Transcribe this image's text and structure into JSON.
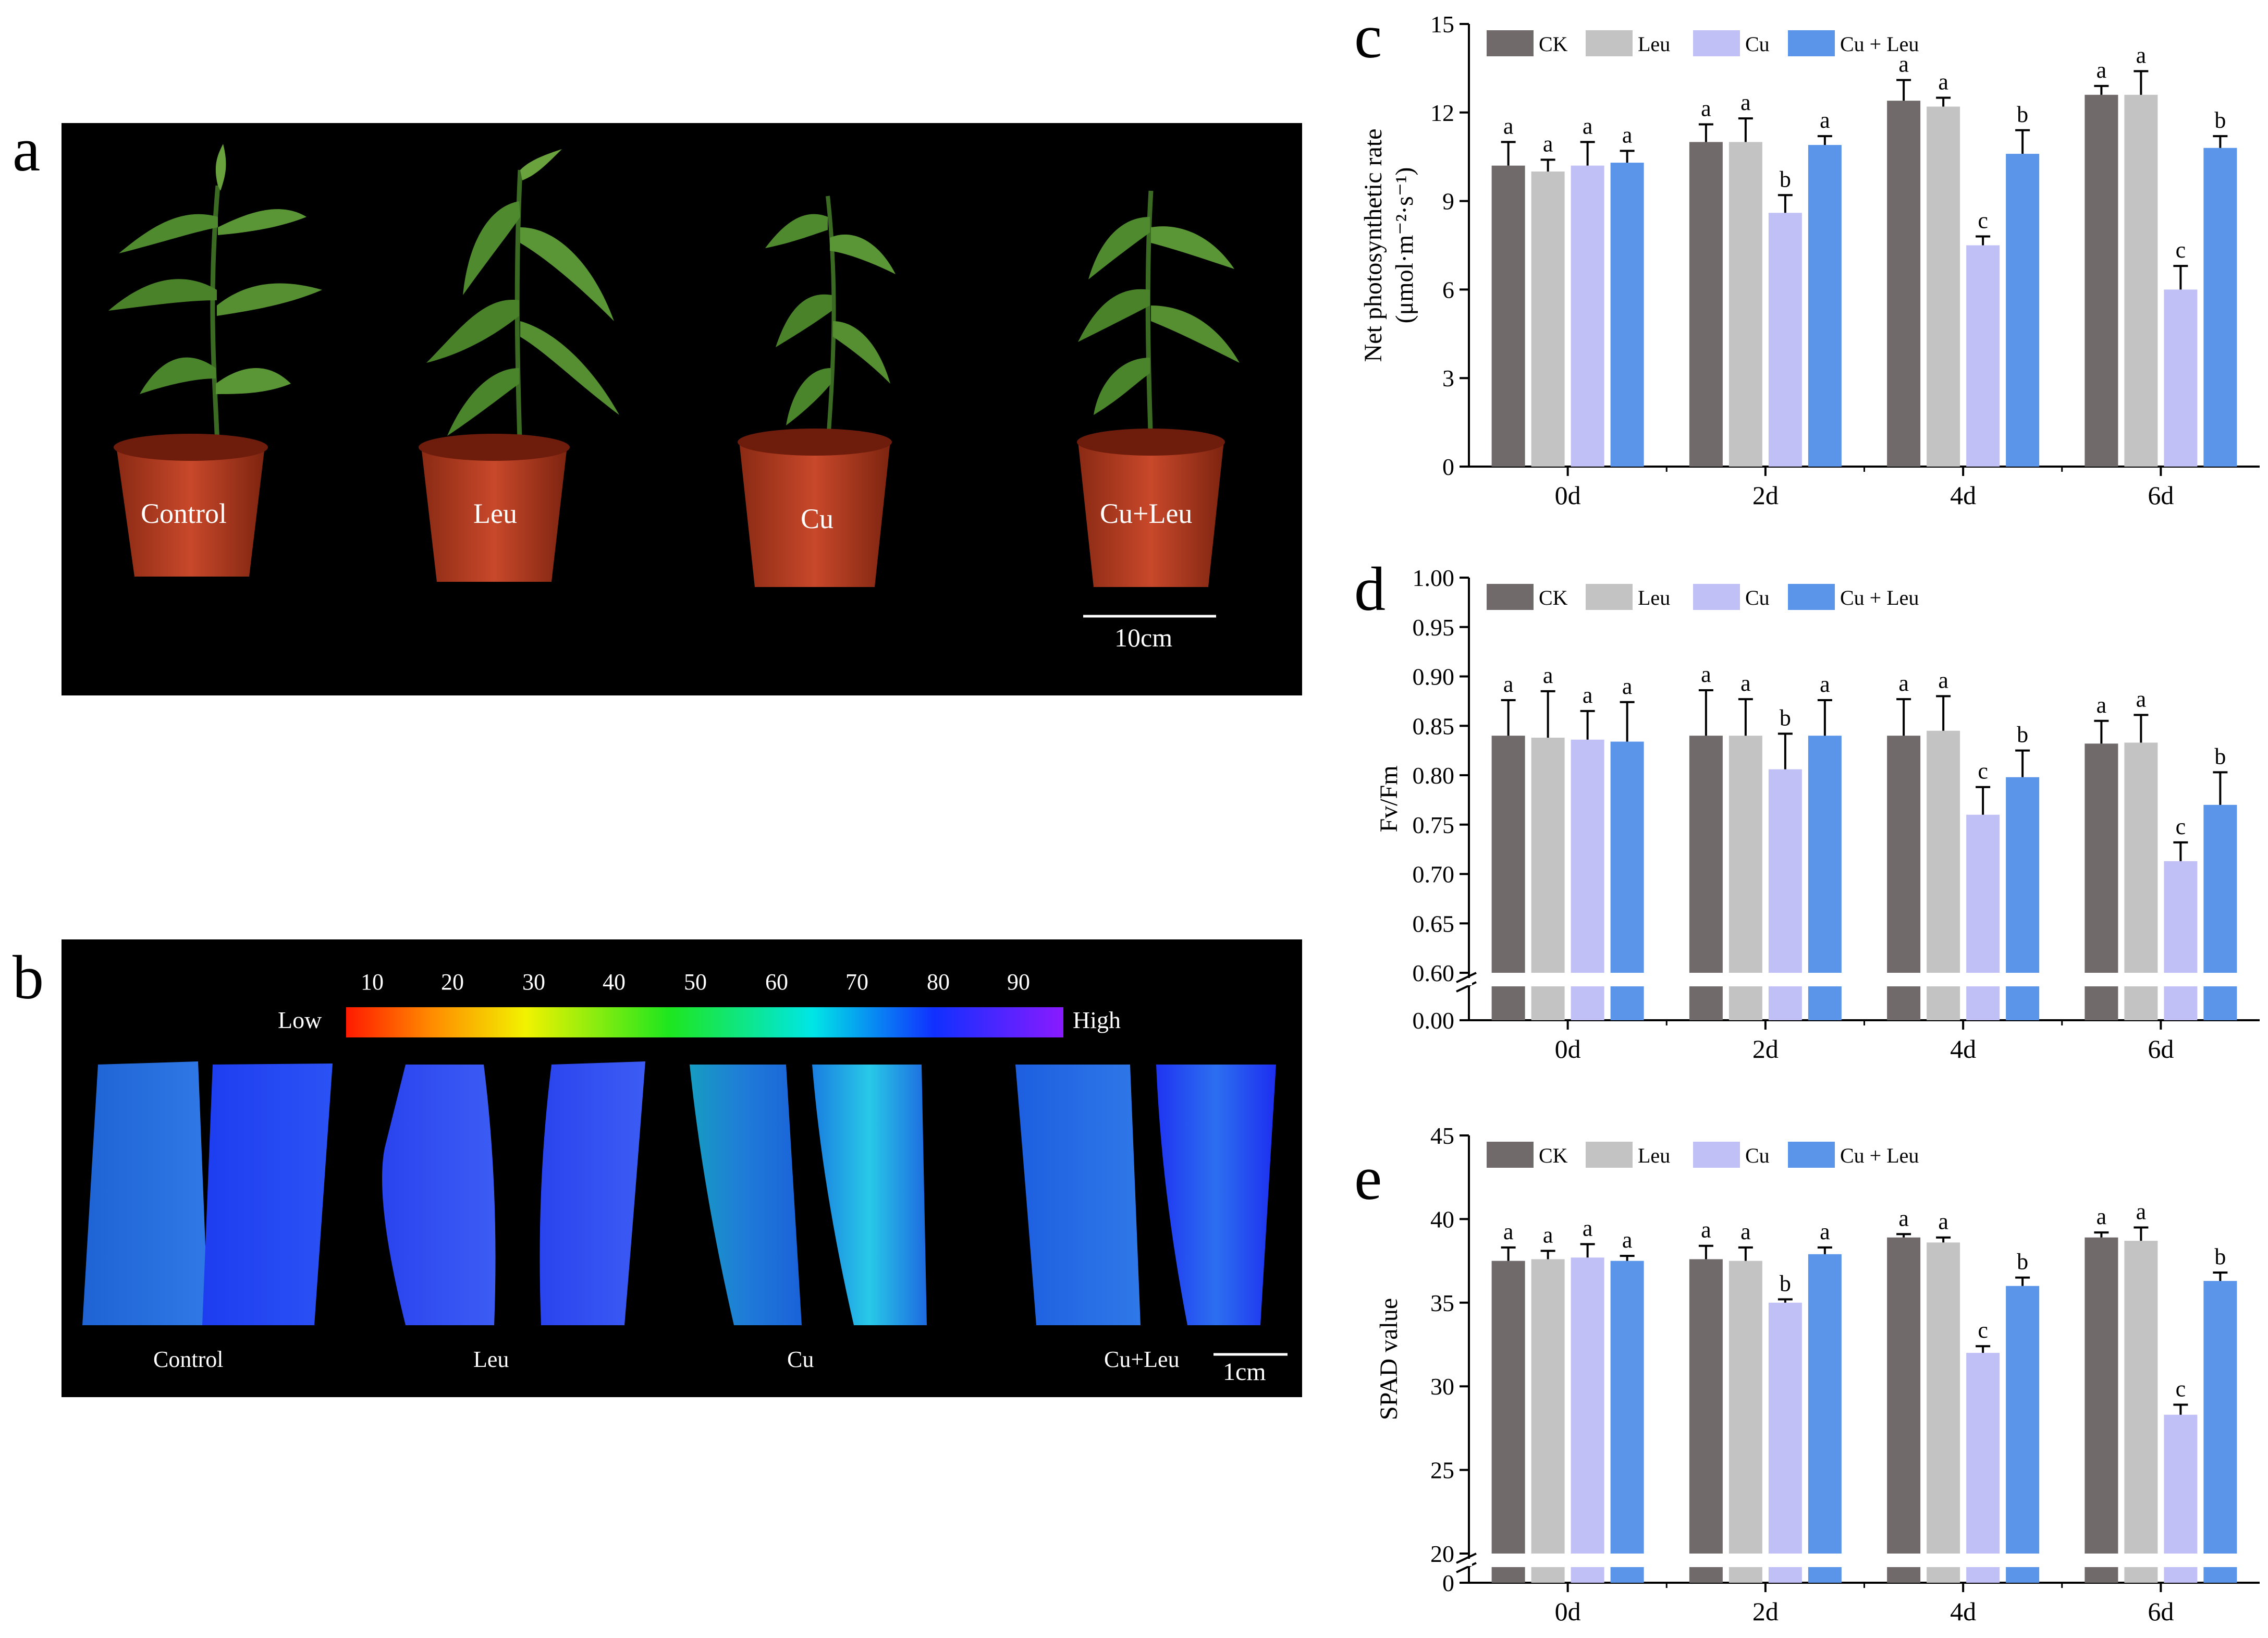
{
  "panels": {
    "a": {
      "letter": "a",
      "labels": [
        "Control",
        "Leu",
        "Cu",
        "Cu+Leu"
      ],
      "scale_bar": "10cm"
    },
    "b": {
      "letter": "b",
      "labels": [
        "Control",
        "Leu",
        "Cu",
        "Cu+Leu"
      ],
      "scale_bar": "1cm",
      "colorbar": {
        "low": "Low",
        "high": "High",
        "ticks": [
          "10",
          "20",
          "30",
          "40",
          "50",
          "60",
          "70",
          "80",
          "90"
        ]
      }
    }
  },
  "colors": {
    "CK": "#716a6b",
    "Leu": "#c3c3c3",
    "Cu": "#c0c0f6",
    "CuLeu": "#5b95ea"
  },
  "chart_data": [
    {
      "letter": "c",
      "type": "bar",
      "ylabel_line1": "Net photosynthetic rate",
      "ylabel_line2": "(μmol·m⁻²·s⁻¹)",
      "categories": [
        "0d",
        "2d",
        "4d",
        "6d"
      ],
      "legend": [
        "CK",
        "Leu",
        "Cu",
        "Cu + Leu"
      ],
      "legend_position": "top-left",
      "ylim": [
        0,
        15
      ],
      "yticks": [
        "0",
        "3",
        "6",
        "9",
        "12",
        "15"
      ],
      "axis_break": false,
      "series": [
        {
          "name": "CK",
          "values": [
            10.2,
            11.0,
            12.4,
            12.6
          ],
          "errors": [
            0.8,
            0.6,
            0.7,
            0.3
          ],
          "letters": [
            "a",
            "a",
            "a",
            "a"
          ]
        },
        {
          "name": "Leu",
          "values": [
            10.0,
            11.0,
            12.2,
            12.6
          ],
          "errors": [
            0.4,
            0.8,
            0.3,
            0.8
          ],
          "letters": [
            "a",
            "a",
            "a",
            "a"
          ]
        },
        {
          "name": "Cu",
          "values": [
            10.2,
            8.6,
            7.5,
            6.0
          ],
          "errors": [
            0.8,
            0.6,
            0.3,
            0.8
          ],
          "letters": [
            "a",
            "b",
            "c",
            "c"
          ]
        },
        {
          "name": "Cu + Leu",
          "values": [
            10.3,
            10.9,
            10.6,
            10.8
          ],
          "errors": [
            0.4,
            0.3,
            0.8,
            0.4
          ],
          "letters": [
            "a",
            "a",
            "b",
            "b"
          ]
        }
      ]
    },
    {
      "letter": "d",
      "type": "bar",
      "ylabel_line1": "Fv/Fm",
      "ylabel_line2": "",
      "categories": [
        "0d",
        "2d",
        "4d",
        "6d"
      ],
      "legend": [
        "CK",
        "Leu",
        "Cu",
        "Cu + Leu"
      ],
      "legend_position": "top-left",
      "ylim": [
        0.6,
        1.0
      ],
      "yticks": [
        "0.60",
        "0.65",
        "0.70",
        "0.75",
        "0.80",
        "0.85",
        "0.90",
        "0.95",
        "1.00"
      ],
      "axis_break": true,
      "break_label": "0.00",
      "series": [
        {
          "name": "CK",
          "values": [
            0.84,
            0.84,
            0.84,
            0.832
          ],
          "errors": [
            0.036,
            0.046,
            0.037,
            0.023
          ],
          "letters": [
            "a",
            "a",
            "a",
            "a"
          ]
        },
        {
          "name": "Leu",
          "values": [
            0.838,
            0.84,
            0.845,
            0.833
          ],
          "errors": [
            0.047,
            0.037,
            0.035,
            0.028
          ],
          "letters": [
            "a",
            "a",
            "a",
            "a"
          ]
        },
        {
          "name": "Cu",
          "values": [
            0.836,
            0.806,
            0.76,
            0.713
          ],
          "errors": [
            0.029,
            0.036,
            0.028,
            0.019
          ],
          "letters": [
            "a",
            "b",
            "c",
            "c"
          ]
        },
        {
          "name": "Cu + Leu",
          "values": [
            0.834,
            0.84,
            0.798,
            0.77
          ],
          "errors": [
            0.04,
            0.036,
            0.027,
            0.033
          ],
          "letters": [
            "a",
            "a",
            "b",
            "b"
          ]
        }
      ]
    },
    {
      "letter": "e",
      "type": "bar",
      "ylabel_line1": "SPAD value",
      "ylabel_line2": "",
      "categories": [
        "0d",
        "2d",
        "4d",
        "6d"
      ],
      "legend": [
        "CK",
        "Leu",
        "Cu",
        "Cu + Leu"
      ],
      "legend_position": "top-left",
      "ylim": [
        20,
        45
      ],
      "yticks": [
        "20",
        "25",
        "30",
        "35",
        "40",
        "45"
      ],
      "axis_break": true,
      "break_label": "0",
      "series": [
        {
          "name": "CK",
          "values": [
            37.5,
            37.6,
            38.9,
            38.9
          ],
          "errors": [
            0.8,
            0.8,
            0.2,
            0.3
          ],
          "letters": [
            "a",
            "a",
            "a",
            "a"
          ]
        },
        {
          "name": "Leu",
          "values": [
            37.6,
            37.5,
            38.6,
            38.7
          ],
          "errors": [
            0.5,
            0.8,
            0.3,
            0.8
          ],
          "letters": [
            "a",
            "a",
            "a",
            "a"
          ]
        },
        {
          "name": "Cu",
          "values": [
            37.7,
            35.0,
            32.0,
            28.3
          ],
          "errors": [
            0.8,
            0.2,
            0.4,
            0.6
          ],
          "letters": [
            "a",
            "b",
            "c",
            "c"
          ]
        },
        {
          "name": "Cu + Leu",
          "values": [
            37.5,
            37.9,
            36.0,
            36.3
          ],
          "errors": [
            0.3,
            0.4,
            0.5,
            0.5
          ],
          "letters": [
            "a",
            "a",
            "b",
            "b"
          ]
        }
      ]
    }
  ]
}
